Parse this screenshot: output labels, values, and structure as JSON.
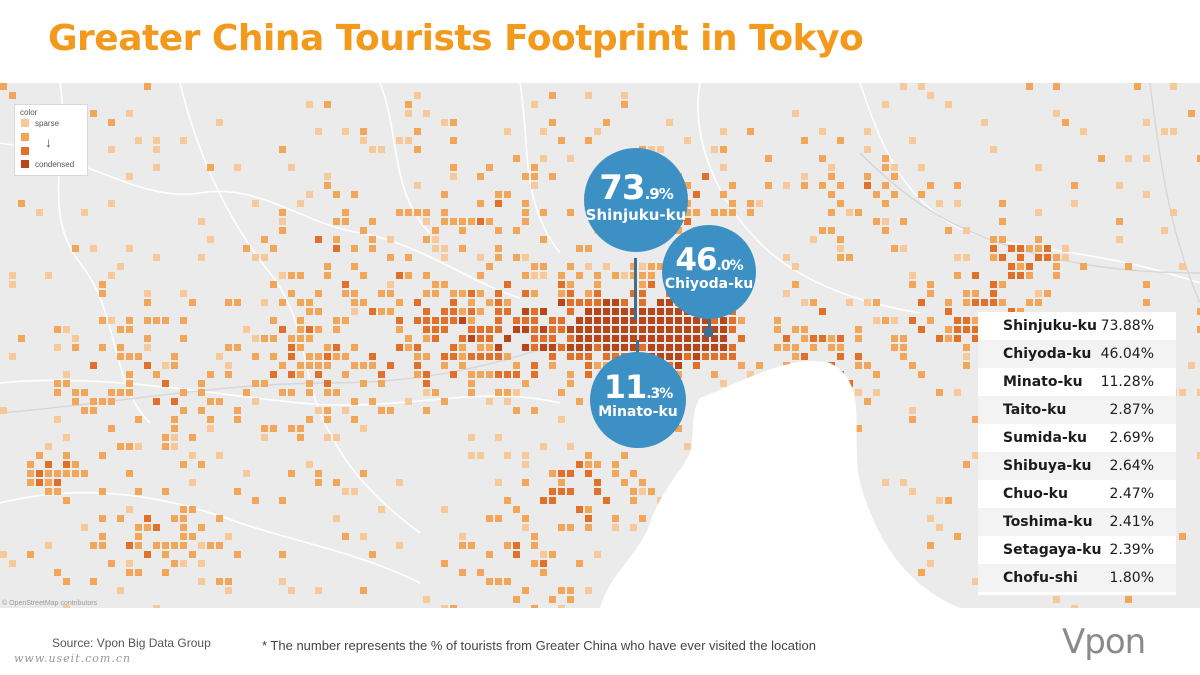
{
  "title": "Greater China Tourists Footprint in Tokyo",
  "colors": {
    "title": "#f39a1d",
    "bubble": "#3d90c4",
    "map_background": "#ebebeb",
    "water": "#ffffff",
    "density_scale": [
      "#f7c99a",
      "#f2a65a",
      "#e0702a",
      "#b8461b"
    ]
  },
  "legend": {
    "title": "color",
    "top_label": "sparse",
    "bottom_label": "condensed",
    "arrow": "↓"
  },
  "callouts": [
    {
      "ward": "Shinjuku-ku",
      "big": "73",
      "small": ".9%"
    },
    {
      "ward": "Chiyoda-ku",
      "big": "46",
      "small": ".0%"
    },
    {
      "ward": "Minato-ku",
      "big": "11",
      "small": ".3%"
    }
  ],
  "ranking": [
    {
      "ward": "Shinjuku-ku",
      "value": "73.88%"
    },
    {
      "ward": "Chiyoda-ku",
      "value": "46.04%"
    },
    {
      "ward": "Minato-ku",
      "value": "11.28%"
    },
    {
      "ward": "Taito-ku",
      "value": "2.87%"
    },
    {
      "ward": "Sumida-ku",
      "value": "2.69%"
    },
    {
      "ward": "Shibuya-ku",
      "value": "2.64%"
    },
    {
      "ward": "Chuo-ku",
      "value": "2.47%"
    },
    {
      "ward": "Toshima-ku",
      "value": "2.41%"
    },
    {
      "ward": "Setagaya-ku",
      "value": "2.39%"
    },
    {
      "ward": "Chofu-shi",
      "value": "1.80%"
    }
  ],
  "map_attribution": "© OpenStreetMap contributors",
  "source": "Source: Vpon Big Data Group",
  "footnote": "* The number represents the % of tourists from Greater China who have ever visited the location",
  "watermark": "www.useit.com.cn",
  "logo": "Vpon"
}
